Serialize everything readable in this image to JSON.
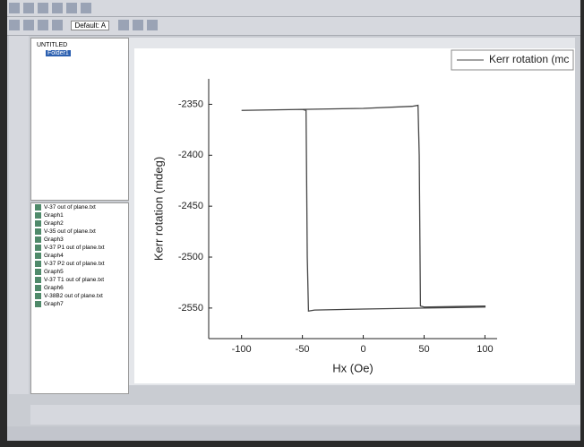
{
  "toolbar": {
    "font_box": "Default: A"
  },
  "project_explorer": {
    "root": "UNTITLED",
    "folder": "Folder1",
    "items": [
      "V-37 out of plane.txt",
      "Graph1",
      "Graph2",
      "V-35 out of plane.txt",
      "Graph3",
      "V-37 P1 out of plane.txt",
      "Graph4",
      "V-37 P2 out of plane.txt",
      "Graph5",
      "V-37 T1 out of plane.txt",
      "Graph6",
      "V-38B2 out of plane.txt",
      "Graph7"
    ]
  },
  "chart_data": {
    "type": "line",
    "x_label": "Hx (Oe)",
    "y_label": "Kerr rotation (mdeg)",
    "x": [
      -100,
      -50,
      0,
      40,
      45,
      46,
      47,
      50,
      100,
      100,
      50,
      0,
      -40,
      -45,
      -46,
      -47,
      -50,
      -100
    ],
    "series": [
      {
        "name": "Kerr rotation (mc",
        "color": "#444444",
        "values": [
          -2356,
          -2355,
          -2354,
          -2352,
          -2351,
          -2400,
          -2548,
          -2549,
          -2548,
          -2549,
          -2550,
          -2551,
          -2552,
          -2553,
          -2500,
          -2356,
          -2355,
          -2356
        ]
      }
    ],
    "xlim": [
      -127,
      110
    ],
    "ylim": [
      -2580,
      -2325
    ],
    "xticks": [
      -100,
      -50,
      0,
      50,
      100
    ],
    "yticks": [
      -2550,
      -2500,
      -2450,
      -2400,
      -2350
    ],
    "grid": false,
    "legend": "top-right"
  }
}
